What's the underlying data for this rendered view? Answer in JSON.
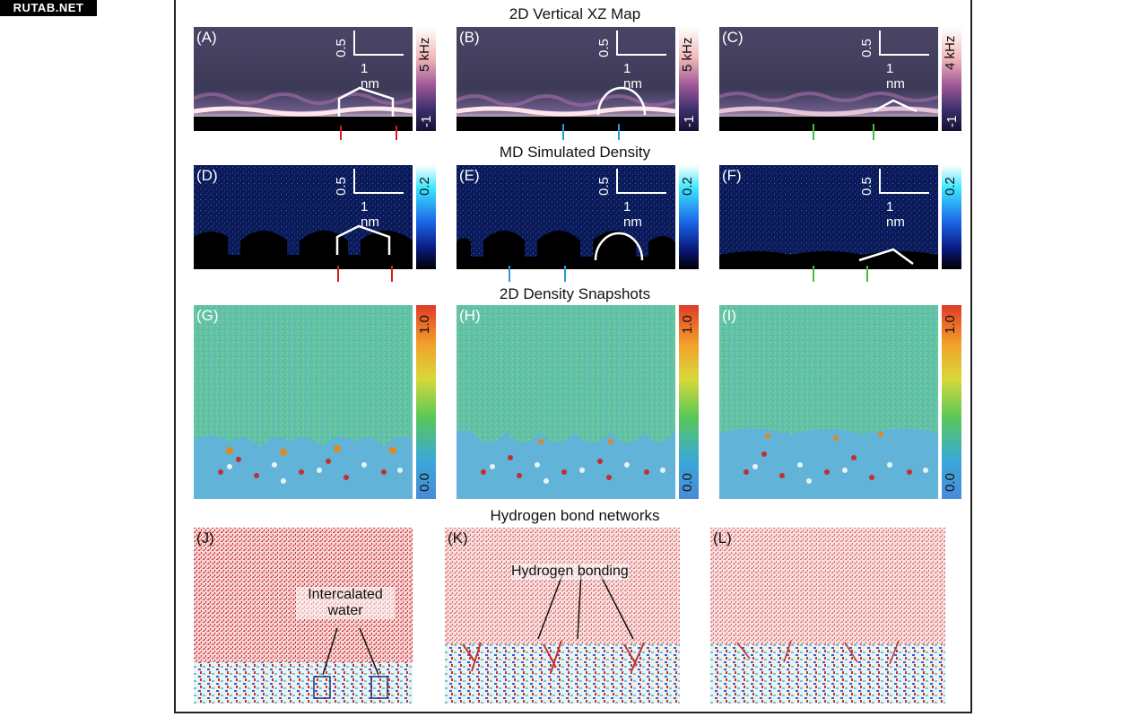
{
  "watermark": "RUTAB.NET",
  "rows": {
    "r1": "2D Vertical XZ Map",
    "r2": "MD Simulated Density",
    "r3": "2D Density Snapshots",
    "r4": "Hydrogen bond networks"
  },
  "panels": {
    "A": "(A)",
    "B": "(B)",
    "C": "(C)",
    "D": "(D)",
    "E": "(E)",
    "F": "(F)",
    "G": "(G)",
    "H": "(H)",
    "I": "(I)",
    "J": "(J)",
    "K": "(K)",
    "L": "(L)"
  },
  "scale": {
    "v": "0.5",
    "h": "1 nm"
  },
  "colorbars": {
    "A": {
      "top": "5 kHz",
      "bottom": "-1"
    },
    "B": {
      "top": "5 kHz",
      "bottom": "-1"
    },
    "C": {
      "top": "4 kHz",
      "bottom": "-1"
    },
    "D": {
      "top": "0.2"
    },
    "E": {
      "top": "0.2"
    },
    "F": {
      "top": "0.2"
    },
    "G": {
      "top": "1.0",
      "bottom": "0.0"
    },
    "H": {
      "top": "1.0",
      "bottom": "0.0"
    },
    "I": {
      "top": "1.0",
      "bottom": "0.0"
    }
  },
  "annotations": {
    "intercalated_1": "Intercalated",
    "intercalated_2": "water",
    "hbonding": "Hydrogen bonding"
  },
  "colors": {
    "red_arrow": "#d42020",
    "blue_arrow": "#2a9ad6",
    "green_arrow": "#3cc23c"
  }
}
